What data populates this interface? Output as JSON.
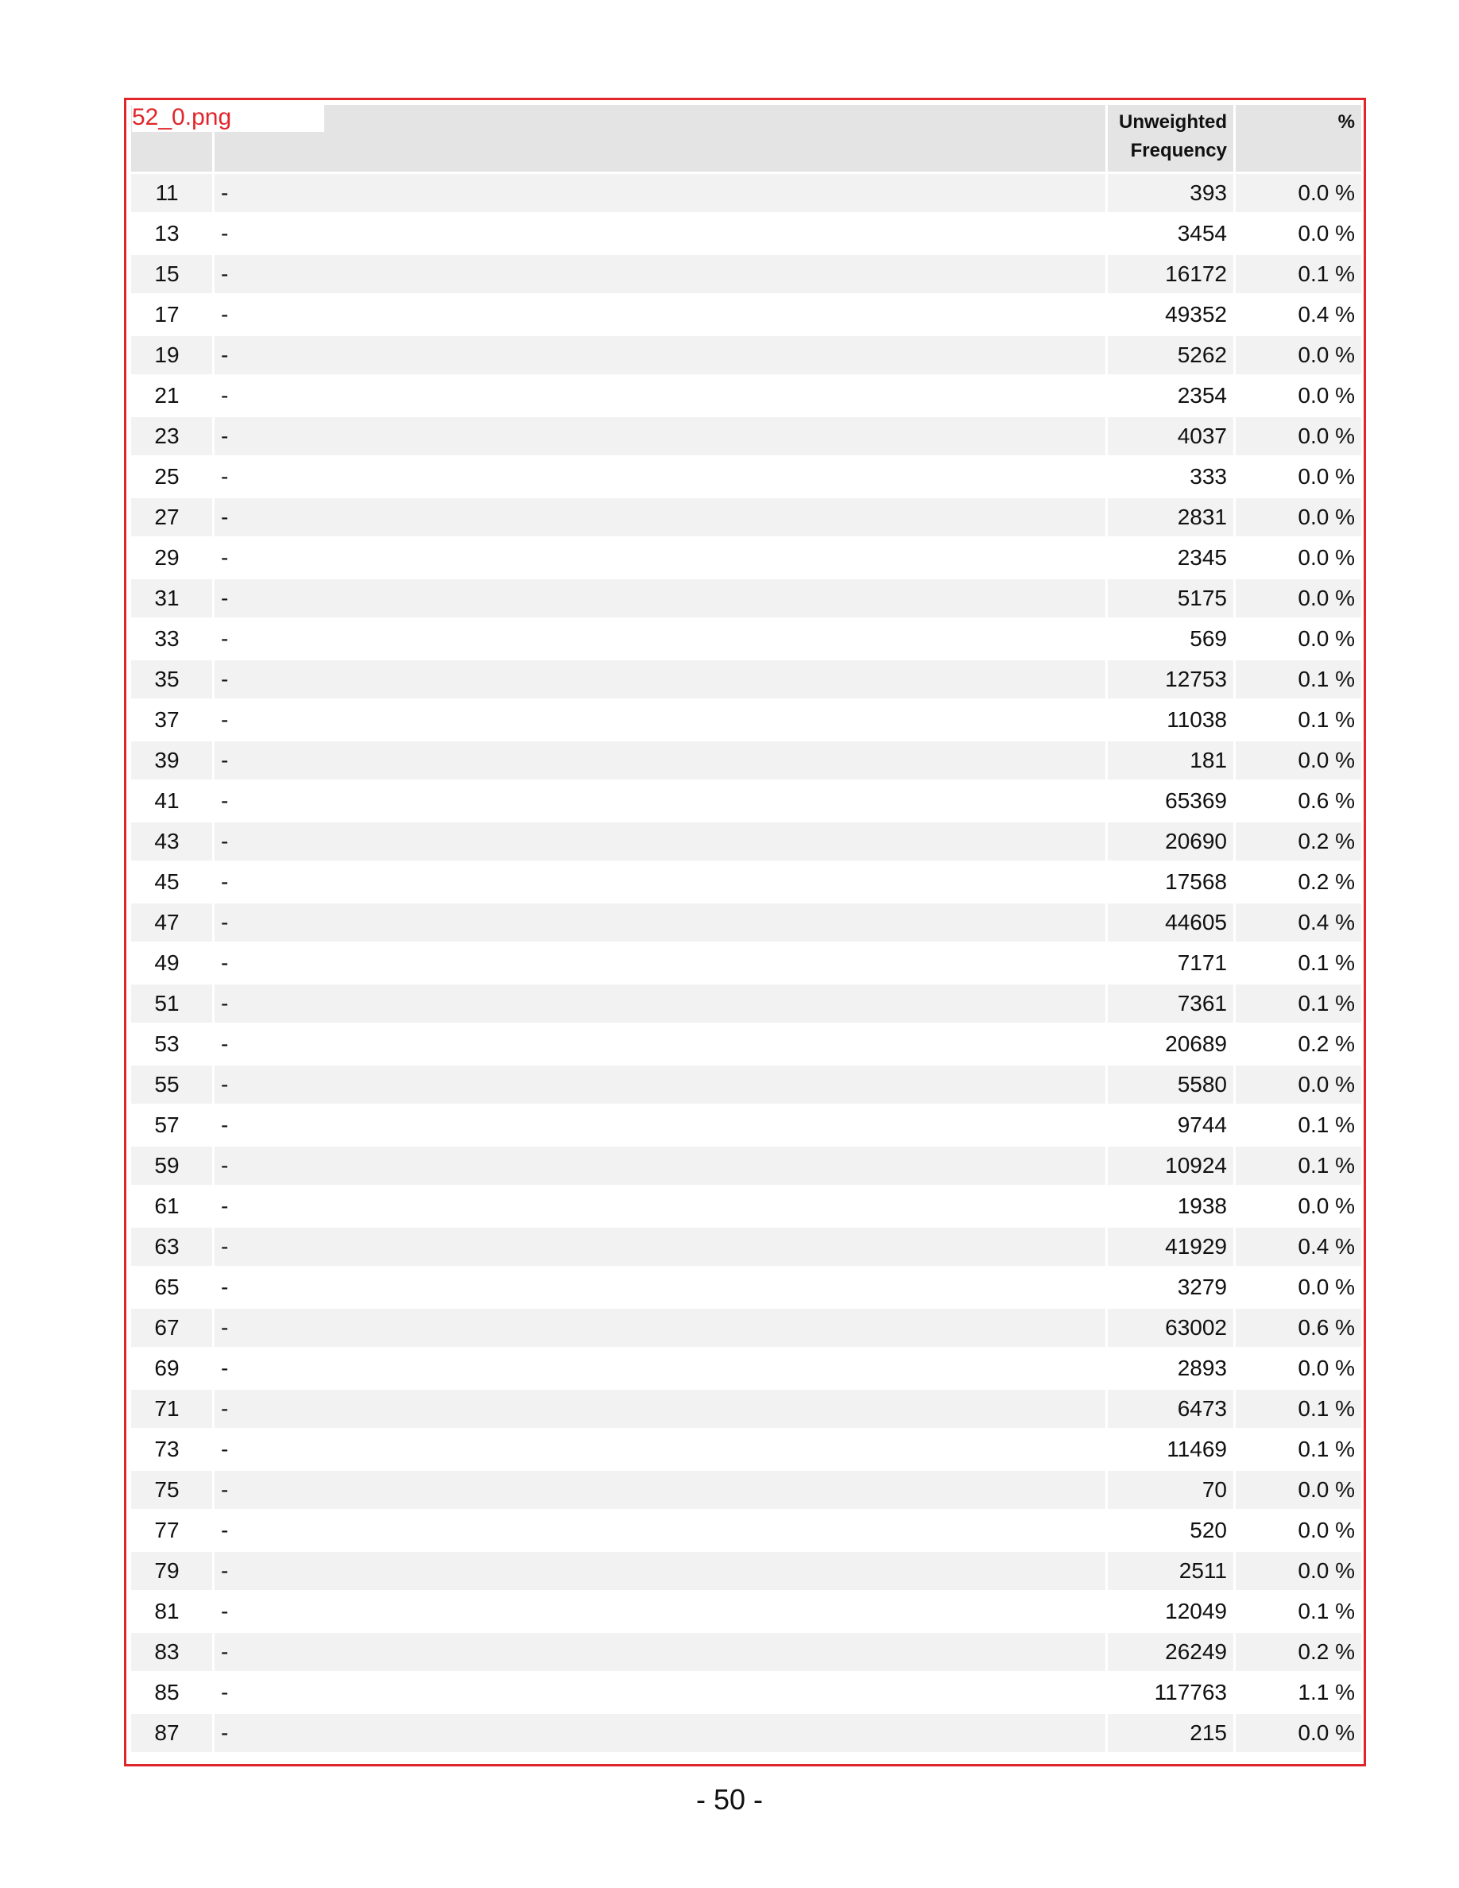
{
  "file_label": "52_0.png",
  "table": {
    "headers": {
      "code": "",
      "label": "",
      "frequency_line1": "Unweighted",
      "frequency_line2": "Frequency",
      "percent": "%"
    },
    "rows": [
      {
        "code": "11",
        "label": "-",
        "frequency": "393",
        "percent": "0.0 %"
      },
      {
        "code": "13",
        "label": "-",
        "frequency": "3454",
        "percent": "0.0 %"
      },
      {
        "code": "15",
        "label": "-",
        "frequency": "16172",
        "percent": "0.1 %"
      },
      {
        "code": "17",
        "label": "-",
        "frequency": "49352",
        "percent": "0.4 %"
      },
      {
        "code": "19",
        "label": "-",
        "frequency": "5262",
        "percent": "0.0 %"
      },
      {
        "code": "21",
        "label": "-",
        "frequency": "2354",
        "percent": "0.0 %"
      },
      {
        "code": "23",
        "label": "-",
        "frequency": "4037",
        "percent": "0.0 %"
      },
      {
        "code": "25",
        "label": "-",
        "frequency": "333",
        "percent": "0.0 %"
      },
      {
        "code": "27",
        "label": "-",
        "frequency": "2831",
        "percent": "0.0 %"
      },
      {
        "code": "29",
        "label": "-",
        "frequency": "2345",
        "percent": "0.0 %"
      },
      {
        "code": "31",
        "label": "-",
        "frequency": "5175",
        "percent": "0.0 %"
      },
      {
        "code": "33",
        "label": "-",
        "frequency": "569",
        "percent": "0.0 %"
      },
      {
        "code": "35",
        "label": "-",
        "frequency": "12753",
        "percent": "0.1 %"
      },
      {
        "code": "37",
        "label": "-",
        "frequency": "11038",
        "percent": "0.1 %"
      },
      {
        "code": "39",
        "label": "-",
        "frequency": "181",
        "percent": "0.0 %"
      },
      {
        "code": "41",
        "label": "-",
        "frequency": "65369",
        "percent": "0.6 %"
      },
      {
        "code": "43",
        "label": "-",
        "frequency": "20690",
        "percent": "0.2 %"
      },
      {
        "code": "45",
        "label": "-",
        "frequency": "17568",
        "percent": "0.2 %"
      },
      {
        "code": "47",
        "label": "-",
        "frequency": "44605",
        "percent": "0.4 %"
      },
      {
        "code": "49",
        "label": "-",
        "frequency": "7171",
        "percent": "0.1 %"
      },
      {
        "code": "51",
        "label": "-",
        "frequency": "7361",
        "percent": "0.1 %"
      },
      {
        "code": "53",
        "label": "-",
        "frequency": "20689",
        "percent": "0.2 %"
      },
      {
        "code": "55",
        "label": "-",
        "frequency": "5580",
        "percent": "0.0 %"
      },
      {
        "code": "57",
        "label": "-",
        "frequency": "9744",
        "percent": "0.1 %"
      },
      {
        "code": "59",
        "label": "-",
        "frequency": "10924",
        "percent": "0.1 %"
      },
      {
        "code": "61",
        "label": "-",
        "frequency": "1938",
        "percent": "0.0 %"
      },
      {
        "code": "63",
        "label": "-",
        "frequency": "41929",
        "percent": "0.4 %"
      },
      {
        "code": "65",
        "label": "-",
        "frequency": "3279",
        "percent": "0.0 %"
      },
      {
        "code": "67",
        "label": "-",
        "frequency": "63002",
        "percent": "0.6 %"
      },
      {
        "code": "69",
        "label": "-",
        "frequency": "2893",
        "percent": "0.0 %"
      },
      {
        "code": "71",
        "label": "-",
        "frequency": "6473",
        "percent": "0.1 %"
      },
      {
        "code": "73",
        "label": "-",
        "frequency": "11469",
        "percent": "0.1 %"
      },
      {
        "code": "75",
        "label": "-",
        "frequency": "70",
        "percent": "0.0 %"
      },
      {
        "code": "77",
        "label": "-",
        "frequency": "520",
        "percent": "0.0 %"
      },
      {
        "code": "79",
        "label": "-",
        "frequency": "2511",
        "percent": "0.0 %"
      },
      {
        "code": "81",
        "label": "-",
        "frequency": "12049",
        "percent": "0.1 %"
      },
      {
        "code": "83",
        "label": "-",
        "frequency": "26249",
        "percent": "0.2 %"
      },
      {
        "code": "85",
        "label": "-",
        "frequency": "117763",
        "percent": "1.1 %"
      },
      {
        "code": "87",
        "label": "-",
        "frequency": "215",
        "percent": "0.0 %"
      }
    ]
  },
  "page_number": "- 50 -"
}
